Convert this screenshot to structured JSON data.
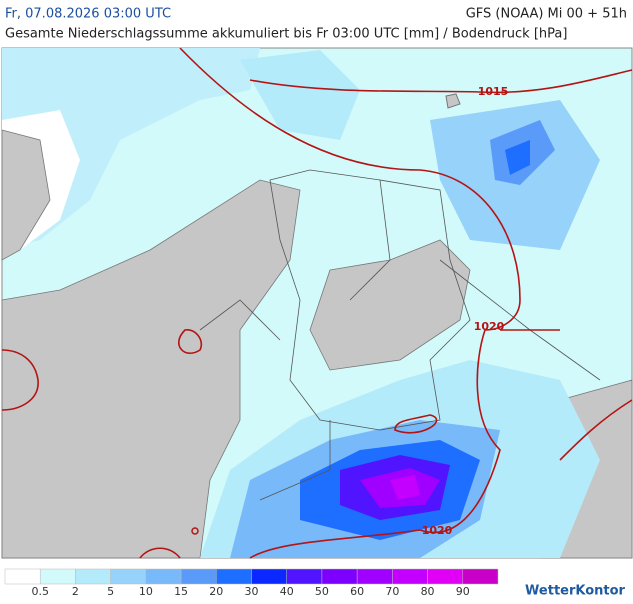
{
  "header": {
    "valid_time": "Fr, 07.08.2026 03:00 UTC",
    "model_run": "GFS (NOAA) Mi 00 + 51h",
    "subtitle": "Gesamte Niederschlagssumme akkumuliert bis Fr 03:00 UTC [mm] / Bodendruck [hPa]"
  },
  "isobar_labels": [
    "1015",
    "1020",
    "1020"
  ],
  "legend": {
    "labels": [
      0.5,
      2,
      5,
      10,
      15,
      20,
      30,
      40,
      50,
      60,
      70,
      80,
      90
    ],
    "colors": [
      "#ffffff",
      "#d2fafa",
      "#b4ebfa",
      "#96d2fa",
      "#78b9fa",
      "#5a9bfa",
      "#1e6eff",
      "#0a28ff",
      "#5014ff",
      "#7d00ff",
      "#a000ff",
      "#c300ff",
      "#e100f5",
      "#c800c8"
    ]
  },
  "brand": "WetterKontor"
}
